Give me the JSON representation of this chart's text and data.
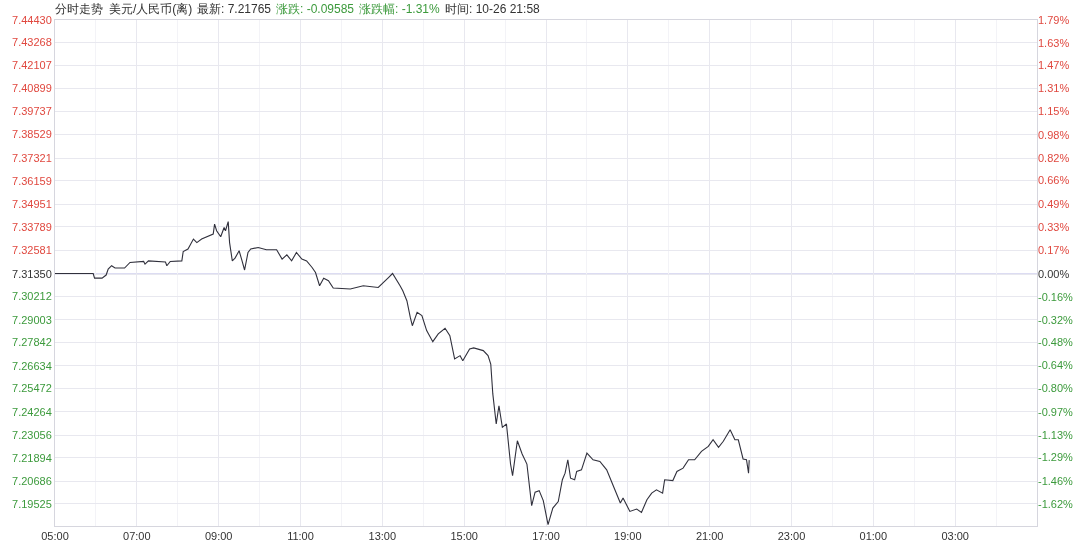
{
  "chart_data": {
    "type": "line",
    "title": "分时走势",
    "subtitle": "美元/人民币(离)",
    "annotations": [
      "最新: 7.21765",
      "涨跌: -0.09585",
      "涨跌幅: -1.31%",
      "时间: 10-26 21:58"
    ],
    "x": [
      "--10-26T05:00",
      "--10-26T05:56",
      "--10-26T05:58",
      "--10-26T06:09",
      "--10-26T06:15",
      "--10-26T06:18",
      "--10-26T06:23",
      "--10-26T06:28",
      "--10-26T06:42",
      "--10-26T06:50",
      "--10-26T07:10",
      "--10-26T07:12",
      "--10-26T07:17",
      "--10-26T07:42",
      "--10-26T07:44",
      "--10-26T07:49",
      "--10-26T08:06",
      "--10-26T08:08",
      "--10-26T08:15",
      "--10-26T08:23",
      "--10-26T08:28",
      "--10-26T08:35",
      "--10-26T08:52",
      "--10-26T08:54",
      "--10-26T08:57",
      "--10-26T09:03",
      "--10-26T09:08",
      "--10-26T09:10",
      "--10-26T09:14",
      "--10-26T09:16",
      "--10-26T09:20",
      "--10-26T09:24",
      "--10-26T09:30",
      "--10-26T09:34",
      "--10-26T09:38",
      "--10-26T09:43",
      "--10-26T09:47",
      "--10-26T09:58",
      "--10-26T10:10",
      "--10-26T10:25",
      "--10-26T10:33",
      "--10-26T10:40",
      "--10-26T10:47",
      "--10-26T10:54",
      "--10-26T11:02",
      "--10-26T11:09",
      "--10-26T11:17",
      "--10-26T11:22",
      "--10-26T11:28",
      "--10-26T11:34",
      "--10-26T11:41",
      "--10-26T11:48",
      "--10-26T12:13",
      "--10-26T12:32",
      "--10-26T12:54",
      "--10-26T13:09",
      "--10-26T13:15",
      "--10-26T13:26",
      "--10-26T13:30",
      "--10-26T13:36",
      "--10-26T13:41",
      "--10-26T13:44",
      "--10-26T13:51",
      "--10-26T13:58",
      "--10-26T14:05",
      "--10-26T14:14",
      "--10-26T14:22",
      "--10-26T14:32",
      "--10-26T14:39",
      "--10-26T14:46",
      "--10-26T14:54",
      "--10-26T14:58",
      "--10-26T15:08",
      "--10-26T15:14",
      "--10-26T15:28",
      "--10-26T15:35",
      "--10-26T15:39",
      "--10-26T15:42",
      "--10-26T15:47",
      "--10-26T15:51",
      "--10-26T15:56",
      "--10-26T16:02",
      "--10-26T16:08",
      "--10-26T16:11",
      "--10-26T16:18",
      "--10-26T16:25",
      "--10-26T16:32",
      "--10-26T16:39",
      "--10-26T16:44",
      "--10-26T16:50",
      "--10-26T16:56",
      "--10-26T17:03",
      "--10-26T17:10",
      "--10-26T17:18",
      "--10-26T17:24",
      "--10-26T17:28",
      "--10-26T17:32",
      "--10-26T17:36",
      "--10-26T17:42",
      "--10-26T17:45",
      "--10-26T17:52",
      "--10-26T18:00",
      "--10-26T18:09",
      "--10-26T18:19",
      "--10-26T18:29",
      "--10-26T18:38",
      "--10-26T18:49",
      "--10-26T18:53",
      "--10-26T19:03",
      "--10-26T19:13",
      "--10-26T19:20",
      "--10-26T19:28",
      "--10-26T19:35",
      "--10-26T19:42",
      "--10-26T19:51",
      "--10-26T19:54",
      "--10-26T20:06",
      "--10-26T20:12",
      "--10-26T20:21",
      "--10-26T20:29",
      "--10-26T20:38",
      "--10-26T20:48",
      "--10-26T20:58",
      "--10-26T21:05",
      "--10-26T21:13",
      "--10-26T21:20",
      "--10-26T21:30",
      "--10-26T21:37",
      "--10-26T21:42",
      "--10-26T21:49",
      "--10-26T21:54",
      "--10-26T21:57",
      "--10-26T21:58"
    ],
    "series": [
      {
        "color": "#30303c",
        "values": [
          7.3138,
          7.3138,
          7.3114,
          7.3114,
          7.313,
          7.3161,
          7.3178,
          7.3166,
          7.3166,
          7.3195,
          7.32,
          7.3186,
          7.3203,
          7.3197,
          7.3178,
          7.32,
          7.3203,
          7.3251,
          7.3264,
          7.3315,
          7.3297,
          7.3315,
          7.3341,
          7.3392,
          7.3358,
          7.3327,
          7.3375,
          7.3358,
          7.3405,
          7.3297,
          7.3203,
          7.3217,
          7.3255,
          7.3207,
          7.3156,
          7.3246,
          7.3264,
          7.3272,
          7.326,
          7.326,
          7.3212,
          7.3234,
          7.3203,
          7.3246,
          7.3212,
          7.3203,
          7.3169,
          7.3143,
          7.3075,
          7.3114,
          7.3101,
          7.3063,
          7.3058,
          7.3075,
          7.3066,
          7.3117,
          7.3138,
          7.3075,
          7.3049,
          7.2998,
          7.2912,
          7.2869,
          7.2938,
          7.2921,
          7.2844,
          7.2787,
          7.2827,
          7.2856,
          7.2818,
          7.2698,
          7.2715,
          7.2689,
          7.2749,
          7.2755,
          7.2741,
          7.2715,
          7.2672,
          7.2518,
          7.2363,
          7.2457,
          7.2346,
          7.2363,
          7.2157,
          7.2097,
          7.2277,
          7.2209,
          7.2157,
          7.1943,
          7.2012,
          7.202,
          7.1969,
          7.1845,
          7.193,
          7.1964,
          7.2076,
          7.211,
          7.2179,
          7.2084,
          7.2076,
          7.2119,
          7.2127,
          7.2213,
          7.2179,
          7.217,
          7.2127,
          7.205,
          7.1956,
          7.1982,
          7.1913,
          7.1925,
          7.1908,
          7.1973,
          7.2007,
          7.2024,
          7.2007,
          7.2076,
          7.2072,
          7.2119,
          7.2136,
          7.2179,
          7.2179,
          7.2222,
          7.2248,
          7.2282,
          7.2243,
          7.2274,
          7.2334,
          7.2282,
          7.2282,
          7.2183,
          7.2179,
          7.211,
          7.2177
        ]
      }
    ],
    "xlim": [
      "--10-26T05:00",
      "--10-27T05:00"
    ],
    "xticks": [
      {
        "value": "--10-26T05:00",
        "label": "05:00"
      },
      {
        "value": "--10-26T06:00",
        "label": null
      },
      {
        "value": "--10-26T07:00",
        "label": "07:00"
      },
      {
        "value": "--10-26T08:00",
        "label": null
      },
      {
        "value": "--10-26T09:00",
        "label": "09:00"
      },
      {
        "value": "--10-26T10:00",
        "label": null
      },
      {
        "value": "--10-26T11:00",
        "label": "11:00"
      },
      {
        "value": "--10-26T12:00",
        "label": null
      },
      {
        "value": "--10-26T13:00",
        "label": "13:00"
      },
      {
        "value": "--10-26T14:00",
        "label": null
      },
      {
        "value": "--10-26T15:00",
        "label": "15:00"
      },
      {
        "value": "--10-26T16:00",
        "label": null
      },
      {
        "value": "--10-26T17:00",
        "label": "17:00"
      },
      {
        "value": "--10-26T18:00",
        "label": null
      },
      {
        "value": "--10-26T19:00",
        "label": "19:00"
      },
      {
        "value": "--10-26T20:00",
        "label": null
      },
      {
        "value": "--10-26T21:00",
        "label": "21:00"
      },
      {
        "value": "--10-26T22:00",
        "label": null
      },
      {
        "value": "--10-26T23:00",
        "label": "23:00"
      },
      {
        "value": "--10-27T00:00",
        "label": null
      },
      {
        "value": "--10-27T01:00",
        "label": "01:00"
      },
      {
        "value": "--10-27T02:00",
        "label": null
      },
      {
        "value": "--10-27T03:00",
        "label": "03:00"
      },
      {
        "value": "--10-27T04:00",
        "label": null
      }
    ],
    "ylim": [
      7.1838,
      7.4443
    ],
    "yticks": [
      {
        "value": 7.4443,
        "label": "7.44430"
      },
      {
        "value": 7.43268,
        "label": "7.43268"
      },
      {
        "value": 7.42107,
        "label": "7.42107"
      },
      {
        "value": 7.40899,
        "label": "7.40899"
      },
      {
        "value": 7.39737,
        "label": "7.39737"
      },
      {
        "value": 7.38529,
        "label": "7.38529"
      },
      {
        "value": 7.37321,
        "label": "7.37321"
      },
      {
        "value": 7.36159,
        "label": "7.36159"
      },
      {
        "value": 7.34951,
        "label": "7.34951"
      },
      {
        "value": 7.33789,
        "label": "7.33789"
      },
      {
        "value": 7.32581,
        "label": "7.32581"
      },
      {
        "value": 7.3135,
        "label": "7.31350"
      },
      {
        "value": 7.30212,
        "label": "7.30212"
      },
      {
        "value": 7.29003,
        "label": "7.29003"
      },
      {
        "value": 7.27842,
        "label": "7.27842"
      },
      {
        "value": 7.26634,
        "label": "7.26634"
      },
      {
        "value": 7.25472,
        "label": "7.25472"
      },
      {
        "value": 7.24264,
        "label": "7.24264"
      },
      {
        "value": 7.23056,
        "label": "7.23056"
      },
      {
        "value": 7.21894,
        "label": "7.21894"
      },
      {
        "value": 7.20686,
        "label": "7.20686"
      },
      {
        "value": 7.19525,
        "label": "7.19525"
      }
    ],
    "y2lim": [
      -1.773,
      1.79
    ],
    "y2ticks": [
      {
        "value": 1.79,
        "label": "1.79%"
      },
      {
        "value": 1.63,
        "label": "1.63%"
      },
      {
        "value": 1.47,
        "label": "1.47%"
      },
      {
        "value": 1.31,
        "label": "1.31%"
      },
      {
        "value": 1.15,
        "label": "1.15%"
      },
      {
        "value": 0.98,
        "label": "0.98%"
      },
      {
        "value": 0.82,
        "label": "0.82%"
      },
      {
        "value": 0.66,
        "label": "0.66%"
      },
      {
        "value": 0.49,
        "label": "0.49%"
      },
      {
        "value": 0.33,
        "label": "0.33%"
      },
      {
        "value": 0.17,
        "label": "0.17%"
      },
      {
        "value": 0,
        "label": "0.00%"
      },
      {
        "value": -0.16,
        "label": "-0.16%"
      },
      {
        "value": -0.32,
        "label": "-0.32%"
      },
      {
        "value": -0.48,
        "label": "-0.48%"
      },
      {
        "value": -0.64,
        "label": "-0.64%"
      },
      {
        "value": -0.8,
        "label": "-0.80%"
      },
      {
        "value": -0.97,
        "label": "-0.97%"
      },
      {
        "value": -1.13,
        "label": "-1.13%"
      },
      {
        "value": -1.29,
        "label": "-1.29%"
      },
      {
        "value": -1.46,
        "label": "-1.46%"
      },
      {
        "value": -1.62,
        "label": "-1.62%"
      }
    ],
    "ref_lines": [
      {
        "axis": "y",
        "value": 7.3135,
        "color": "#dcdcf2"
      }
    ],
    "grid": true
  }
}
